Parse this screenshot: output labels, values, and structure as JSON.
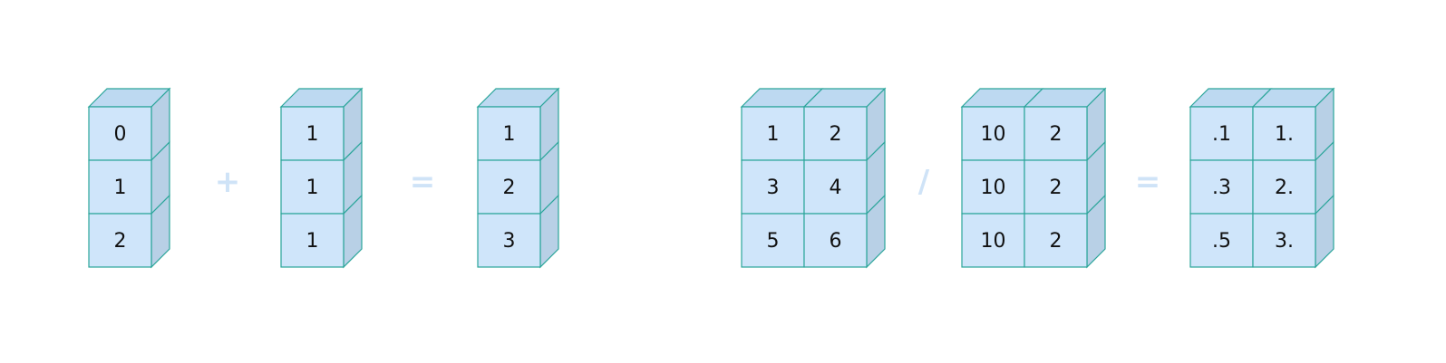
{
  "colors": {
    "front": "#cfe5fa",
    "top": "#bdd9f1",
    "side": "#b8d0e6",
    "edge": "#2aa59a",
    "operator": "#cfe3f7"
  },
  "equations": [
    {
      "name": "add",
      "operands": [
        {
          "rows": [
            [
              "0"
            ],
            [
              "1"
            ],
            [
              "2"
            ]
          ]
        },
        {
          "rows": [
            [
              "1"
            ],
            [
              "1"
            ],
            [
              "1"
            ]
          ]
        },
        {
          "rows": [
            [
              "1"
            ],
            [
              "2"
            ],
            [
              "3"
            ]
          ]
        }
      ],
      "operators": [
        "+",
        "="
      ]
    },
    {
      "name": "divide",
      "operands": [
        {
          "rows": [
            [
              "1",
              "2"
            ],
            [
              "3",
              "4"
            ],
            [
              "5",
              "6"
            ]
          ]
        },
        {
          "rows": [
            [
              "10",
              "2"
            ],
            [
              "10",
              "2"
            ],
            [
              "10",
              "2"
            ]
          ]
        },
        {
          "rows": [
            [
              ".1",
              "1."
            ],
            [
              ".3",
              "2."
            ],
            [
              ".5",
              "3."
            ]
          ]
        }
      ],
      "operators": [
        "/",
        "="
      ]
    }
  ]
}
